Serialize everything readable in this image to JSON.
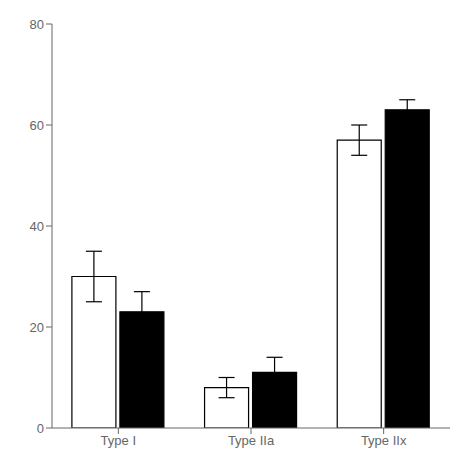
{
  "chart_data": {
    "type": "bar",
    "categories": [
      "Type I",
      "Type IIa",
      "Type IIx"
    ],
    "series": [
      {
        "color": "#ffffff",
        "values": [
          30,
          8,
          57
        ],
        "errors": [
          5,
          2,
          3
        ]
      },
      {
        "color": "#000000",
        "values": [
          23,
          11,
          63
        ],
        "errors": [
          4,
          3,
          2
        ]
      }
    ],
    "ylim": [
      0,
      80
    ],
    "yticks": [
      0,
      20,
      40,
      60,
      80
    ],
    "grid": false
  }
}
